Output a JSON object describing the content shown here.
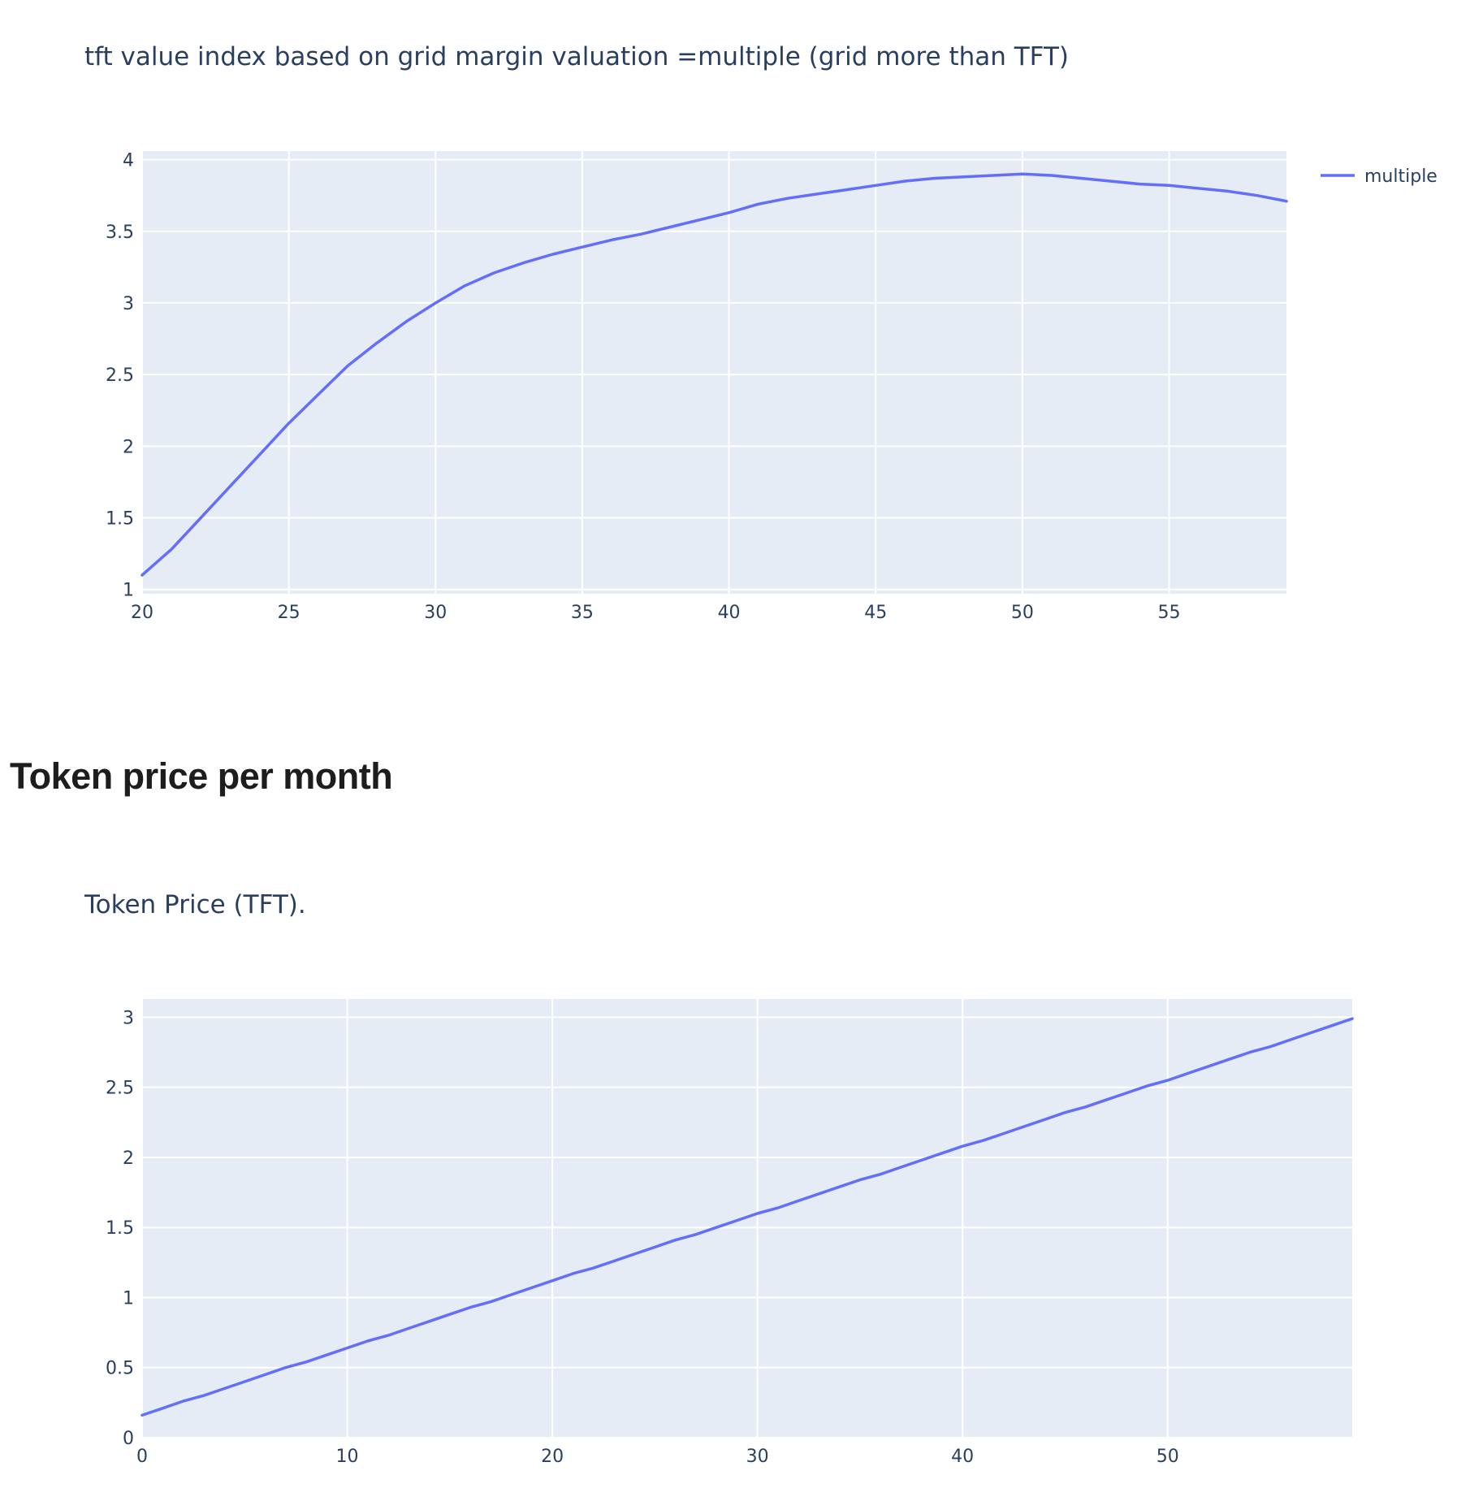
{
  "section_heading": "Token price per month",
  "chart_data": [
    {
      "type": "line",
      "title": "tft value index based on grid margin valuation =multiple (grid more than TFT)",
      "xlabel": "",
      "ylabel": "",
      "xlim": [
        20,
        59
      ],
      "ylim": [
        0.97,
        4.06
      ],
      "x_ticks": [
        20,
        25,
        30,
        35,
        40,
        45,
        50,
        55
      ],
      "y_ticks": [
        1,
        1.5,
        2,
        2.5,
        3,
        3.5,
        4
      ],
      "x_tick_labels": [
        "20",
        "25",
        "30",
        "35",
        "40",
        "45",
        "50",
        "55"
      ],
      "y_tick_labels": [
        "1",
        "1.5",
        "2",
        "2.5",
        "3",
        "3.5",
        "4"
      ],
      "grid": true,
      "legend": "top-right",
      "series": [
        {
          "name": "multiple",
          "color": "#636efa",
          "x": [
            20,
            21,
            22,
            23,
            24,
            25,
            26,
            27,
            28,
            29,
            30,
            31,
            32,
            33,
            34,
            35,
            36,
            37,
            38,
            39,
            40,
            41,
            42,
            43,
            44,
            45,
            46,
            47,
            48,
            49,
            50,
            51,
            52,
            53,
            54,
            55,
            56,
            57,
            58,
            59
          ],
          "y": [
            1.1,
            1.28,
            1.5,
            1.72,
            1.94,
            2.16,
            2.36,
            2.56,
            2.72,
            2.87,
            3.0,
            3.12,
            3.21,
            3.28,
            3.34,
            3.39,
            3.44,
            3.48,
            3.53,
            3.58,
            3.63,
            3.69,
            3.73,
            3.76,
            3.79,
            3.82,
            3.85,
            3.87,
            3.88,
            3.89,
            3.9,
            3.89,
            3.87,
            3.85,
            3.83,
            3.82,
            3.8,
            3.78,
            3.75,
            3.71
          ]
        }
      ]
    },
    {
      "type": "line",
      "title": "Token Price (TFT).",
      "xlabel": "",
      "ylabel": "",
      "xlim": [
        0,
        59
      ],
      "ylim": [
        0,
        3.13
      ],
      "x_ticks": [
        0,
        10,
        20,
        30,
        40,
        50
      ],
      "y_ticks": [
        0,
        0.5,
        1,
        1.5,
        2,
        2.5,
        3
      ],
      "x_tick_labels": [
        "0",
        "10",
        "20",
        "30",
        "40",
        "50"
      ],
      "y_tick_labels": [
        "0",
        "0.5",
        "1",
        "1.5",
        "2",
        "2.5",
        "3"
      ],
      "grid": true,
      "legend": "none",
      "series": [
        {
          "color": "#636efa",
          "x": [
            0,
            1,
            2,
            3,
            4,
            5,
            6,
            7,
            8,
            9,
            10,
            11,
            12,
            13,
            14,
            15,
            16,
            17,
            18,
            19,
            20,
            21,
            22,
            23,
            24,
            25,
            26,
            27,
            28,
            29,
            30,
            31,
            32,
            33,
            34,
            35,
            36,
            37,
            38,
            39,
            40,
            41,
            42,
            43,
            44,
            45,
            46,
            47,
            48,
            49,
            50,
            51,
            52,
            53,
            54,
            55,
            56,
            57,
            58,
            59
          ],
          "y": [
            0.16,
            0.21,
            0.26,
            0.3,
            0.35,
            0.4,
            0.45,
            0.5,
            0.54,
            0.59,
            0.64,
            0.69,
            0.73,
            0.78,
            0.83,
            0.88,
            0.93,
            0.97,
            1.02,
            1.07,
            1.12,
            1.17,
            1.21,
            1.26,
            1.31,
            1.36,
            1.41,
            1.45,
            1.5,
            1.55,
            1.6,
            1.64,
            1.69,
            1.74,
            1.79,
            1.84,
            1.88,
            1.93,
            1.98,
            2.03,
            2.08,
            2.12,
            2.17,
            2.22,
            2.27,
            2.32,
            2.36,
            2.41,
            2.46,
            2.51,
            2.55,
            2.6,
            2.65,
            2.7,
            2.75,
            2.79,
            2.84,
            2.89,
            2.94,
            2.99
          ]
        }
      ]
    }
  ]
}
